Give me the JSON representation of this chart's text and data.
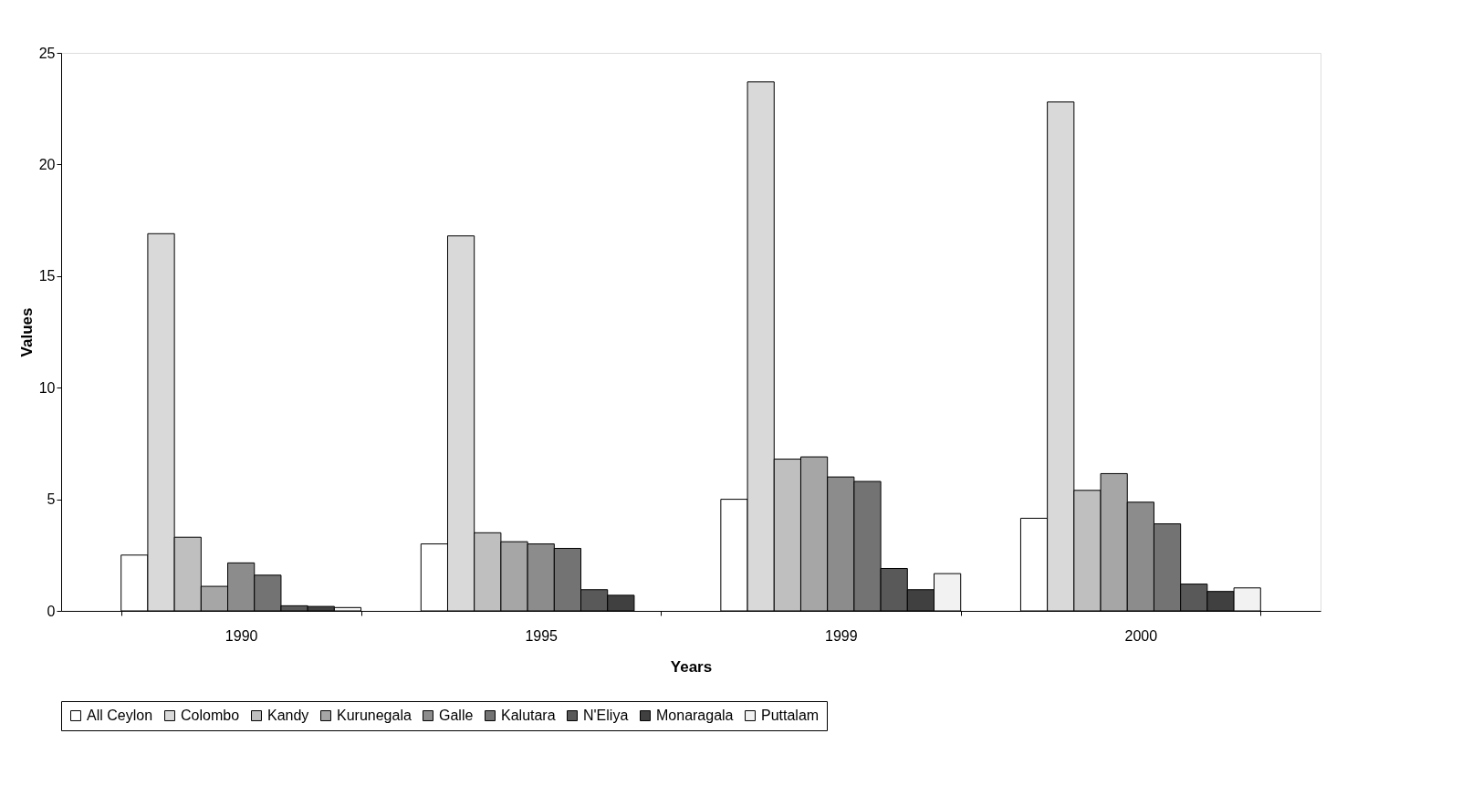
{
  "chart_data": {
    "type": "bar",
    "xlabel": "Years",
    "ylabel": "Values",
    "categories": [
      "1990",
      "1995",
      "1999",
      "2000"
    ],
    "series": [
      {
        "name": "All Ceylon",
        "color": "#ffffff",
        "values": [
          2.5,
          3.0,
          5.0,
          4.15
        ]
      },
      {
        "name": "Colombo",
        "color": "#d9d9d9",
        "values": [
          16.9,
          16.8,
          23.7,
          22.8
        ]
      },
      {
        "name": "Kandy",
        "color": "#bfbfbf",
        "values": [
          3.3,
          3.5,
          6.8,
          5.4
        ]
      },
      {
        "name": "Kurunegala",
        "color": "#a6a6a6",
        "values": [
          1.1,
          3.1,
          6.9,
          6.15
        ]
      },
      {
        "name": "Galle",
        "color": "#8c8c8c",
        "values": [
          2.15,
          3.0,
          6.0,
          4.87
        ]
      },
      {
        "name": "Kalutara",
        "color": "#737373",
        "values": [
          1.6,
          2.8,
          5.8,
          3.9
        ]
      },
      {
        "name": "N'Eliya",
        "color": "#595959",
        "values": [
          0.23,
          0.95,
          1.9,
          1.2
        ]
      },
      {
        "name": "Monaragala",
        "color": "#404040",
        "values": [
          0.2,
          0.7,
          0.95,
          0.87
        ]
      },
      {
        "name": "Puttalam",
        "color": "#f2f2f2",
        "values": [
          0.15,
          null,
          1.67,
          1.03
        ]
      }
    ],
    "ylim": [
      0,
      25
    ],
    "yticks": [
      0,
      5,
      10,
      15,
      20,
      25
    ],
    "grid": false,
    "legend": "bottom"
  }
}
